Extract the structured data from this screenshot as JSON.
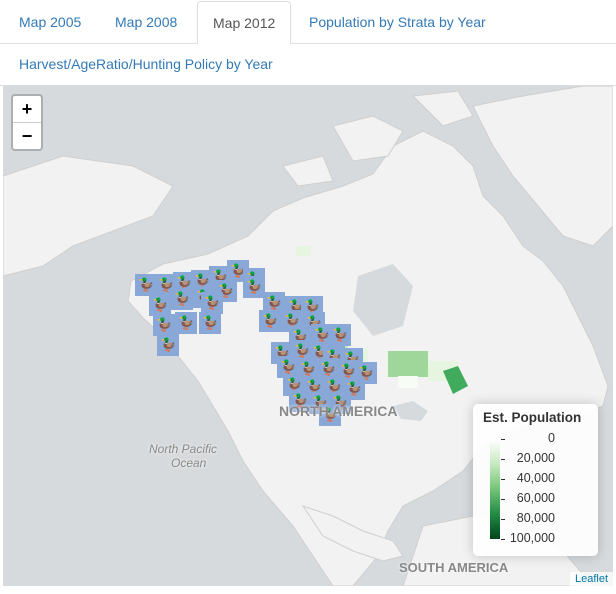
{
  "tabs": [
    {
      "label": "Map 2005",
      "active": false
    },
    {
      "label": "Map 2008",
      "active": false
    },
    {
      "label": "Map 2012",
      "active": true
    },
    {
      "label": "Population by Strata by Year",
      "active": false
    },
    {
      "label": "Harvest/AgeRatio/Hunting Policy by Year",
      "active": false
    }
  ],
  "map": {
    "zoom_in": "+",
    "zoom_out": "−",
    "labels": {
      "north_america": "NORTH AMERICA",
      "north_pacific": "North Pacific",
      "ocean": "Ocean",
      "south_america": "SOUTH AMERICA"
    },
    "attribution": "Leaflet",
    "marker_icon": "duck-icon",
    "marker_color": "#89a8d8"
  },
  "legend": {
    "title": "Est. Population",
    "labels": [
      "0",
      "20,000",
      "40,000",
      "60,000",
      "80,000",
      "100,000"
    ],
    "colors": [
      "#ffffff",
      "#c7e9c0",
      "#74c476",
      "#238b45",
      "#00441b"
    ]
  }
}
